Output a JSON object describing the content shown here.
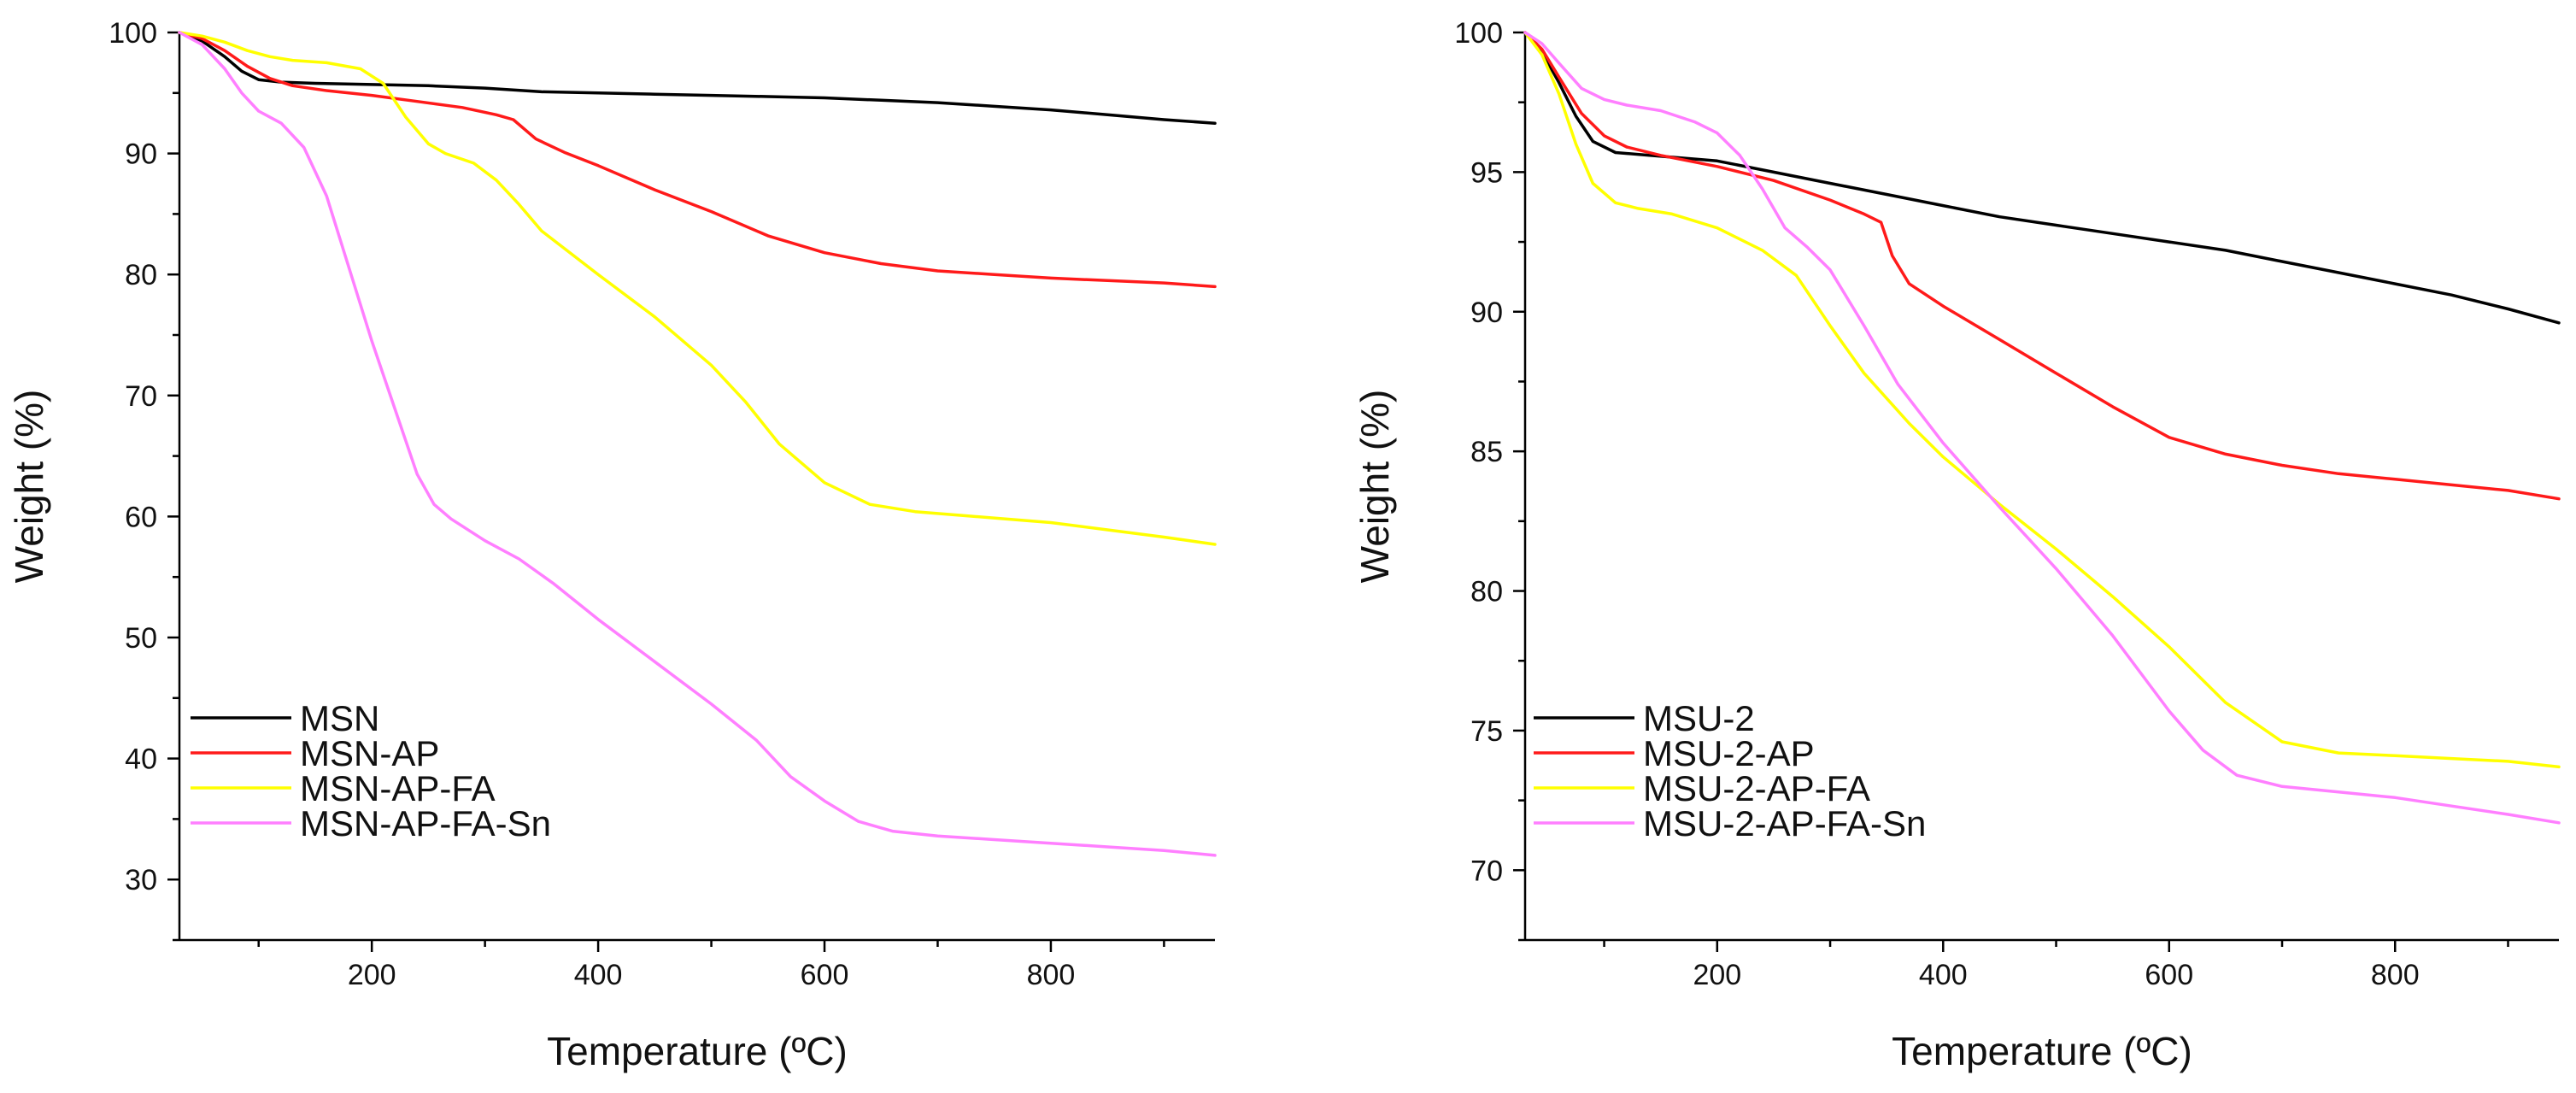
{
  "chart_data": [
    {
      "type": "line",
      "panel": "left",
      "title": "",
      "xlabel": "Temperature (ºC)",
      "ylabel": "Weight (%)",
      "xlim": [
        30,
        945
      ],
      "ylim": [
        25,
        100
      ],
      "xticks": [
        200,
        400,
        600,
        800
      ],
      "yticks": [
        30,
        40,
        50,
        60,
        70,
        80,
        90,
        100
      ],
      "grid": false,
      "legend_position": "bottom-left",
      "series": [
        {
          "name": "MSN",
          "color": "#000000",
          "x": [
            30,
            50,
            70,
            85,
            100,
            120,
            150,
            200,
            250,
            300,
            350,
            400,
            450,
            500,
            550,
            600,
            650,
            700,
            750,
            800,
            850,
            900,
            945
          ],
          "y": [
            100,
            99.3,
            98,
            96.8,
            96.1,
            95.9,
            95.8,
            95.7,
            95.6,
            95.4,
            95.1,
            95.0,
            94.9,
            94.8,
            94.7,
            94.6,
            94.4,
            94.2,
            93.9,
            93.6,
            93.2,
            92.8,
            92.5
          ]
        },
        {
          "name": "MSN-AP",
          "color": "#ff1a1a",
          "x": [
            30,
            50,
            70,
            90,
            110,
            130,
            160,
            200,
            240,
            280,
            310,
            325,
            345,
            370,
            400,
            450,
            500,
            550,
            600,
            650,
            700,
            750,
            800,
            850,
            900,
            945
          ],
          "y": [
            100,
            99.5,
            98.5,
            97.2,
            96.2,
            95.6,
            95.2,
            94.8,
            94.3,
            93.8,
            93.2,
            92.8,
            91.2,
            90.1,
            89.0,
            87.0,
            85.2,
            83.2,
            81.8,
            80.9,
            80.3,
            80.0,
            79.7,
            79.5,
            79.3,
            79.0
          ]
        },
        {
          "name": "MSN-AP-FA",
          "color": "#ffff00",
          "x": [
            30,
            50,
            70,
            90,
            110,
            130,
            160,
            190,
            210,
            230,
            250,
            265,
            290,
            310,
            330,
            350,
            400,
            450,
            500,
            530,
            560,
            600,
            640,
            680,
            720,
            760,
            800,
            850,
            900,
            945
          ],
          "y": [
            100,
            99.7,
            99.2,
            98.5,
            98.0,
            97.7,
            97.5,
            97.0,
            95.8,
            93.0,
            90.8,
            90.0,
            89.2,
            87.8,
            85.8,
            83.6,
            80.0,
            76.5,
            72.5,
            69.5,
            66.0,
            62.8,
            61.0,
            60.4,
            60.1,
            59.8,
            59.5,
            58.9,
            58.3,
            57.7
          ]
        },
        {
          "name": "MSN-AP-FA-Sn",
          "color": "#ff7fff",
          "x": [
            30,
            50,
            70,
            85,
            100,
            120,
            140,
            160,
            180,
            200,
            220,
            240,
            255,
            270,
            300,
            330,
            360,
            400,
            450,
            500,
            540,
            570,
            600,
            630,
            660,
            700,
            750,
            800,
            850,
            900,
            945
          ],
          "y": [
            100,
            99,
            97,
            95,
            93.5,
            92.5,
            90.5,
            86.5,
            80.5,
            74.5,
            69.0,
            63.5,
            61.0,
            59.8,
            58.0,
            56.5,
            54.5,
            51.5,
            48.0,
            44.5,
            41.5,
            38.5,
            36.5,
            34.8,
            34.0,
            33.6,
            33.3,
            33.0,
            32.7,
            32.4,
            32.0
          ]
        }
      ]
    },
    {
      "type": "line",
      "panel": "right",
      "title": "",
      "xlabel": "Temperature (ºC)",
      "ylabel": "Weight (%)",
      "xlim": [
        30,
        945
      ],
      "ylim": [
        67.5,
        100
      ],
      "xticks": [
        200,
        400,
        600,
        800
      ],
      "yticks": [
        70,
        75,
        80,
        85,
        90,
        95,
        100
      ],
      "grid": false,
      "legend_position": "bottom-left",
      "series": [
        {
          "name": "MSU-2",
          "color": "#000000",
          "x": [
            30,
            45,
            60,
            75,
            90,
            110,
            140,
            200,
            250,
            300,
            350,
            400,
            450,
            500,
            550,
            600,
            650,
            700,
            750,
            800,
            850,
            900,
            945
          ],
          "y": [
            100,
            99.3,
            98.2,
            97.0,
            96.1,
            95.7,
            95.6,
            95.4,
            95.0,
            94.6,
            94.2,
            93.8,
            93.4,
            93.1,
            92.8,
            92.5,
            92.2,
            91.8,
            91.4,
            91.0,
            90.6,
            90.1,
            89.6
          ]
        },
        {
          "name": "MSU-2-AP",
          "color": "#ff1a1a",
          "x": [
            30,
            45,
            60,
            80,
            100,
            120,
            150,
            200,
            250,
            300,
            330,
            345,
            355,
            370,
            400,
            450,
            500,
            550,
            600,
            650,
            700,
            750,
            800,
            850,
            900,
            945
          ],
          "y": [
            100,
            99.4,
            98.4,
            97.1,
            96.3,
            95.9,
            95.6,
            95.2,
            94.7,
            94.0,
            93.5,
            93.2,
            92.0,
            91.0,
            90.2,
            89.0,
            87.8,
            86.6,
            85.5,
            84.9,
            84.5,
            84.2,
            84.0,
            83.8,
            83.6,
            83.3
          ]
        },
        {
          "name": "MSU-2-AP-FA",
          "color": "#ffff00",
          "x": [
            30,
            45,
            60,
            75,
            90,
            110,
            130,
            160,
            200,
            240,
            270,
            300,
            330,
            370,
            400,
            450,
            500,
            550,
            600,
            650,
            700,
            750,
            800,
            850,
            900,
            945
          ],
          "y": [
            100,
            99.2,
            97.8,
            96.0,
            94.6,
            93.9,
            93.7,
            93.5,
            93.0,
            92.2,
            91.3,
            89.5,
            87.8,
            86.0,
            84.8,
            83.1,
            81.5,
            79.8,
            78.0,
            76.0,
            74.6,
            74.2,
            74.1,
            74.0,
            73.9,
            73.7
          ]
        },
        {
          "name": "MSU-2-AP-FA-Sn",
          "color": "#ff7fff",
          "x": [
            30,
            45,
            60,
            80,
            100,
            120,
            150,
            180,
            200,
            220,
            240,
            260,
            280,
            300,
            330,
            360,
            400,
            450,
            500,
            550,
            600,
            630,
            660,
            700,
            750,
            800,
            850,
            900,
            945
          ],
          "y": [
            100,
            99.6,
            98.9,
            98.0,
            97.6,
            97.4,
            97.2,
            96.8,
            96.4,
            95.6,
            94.4,
            93.0,
            92.3,
            91.5,
            89.5,
            87.4,
            85.3,
            83.0,
            80.8,
            78.4,
            75.7,
            74.3,
            73.4,
            73.0,
            72.8,
            72.6,
            72.3,
            72.0,
            71.7
          ]
        }
      ]
    }
  ]
}
